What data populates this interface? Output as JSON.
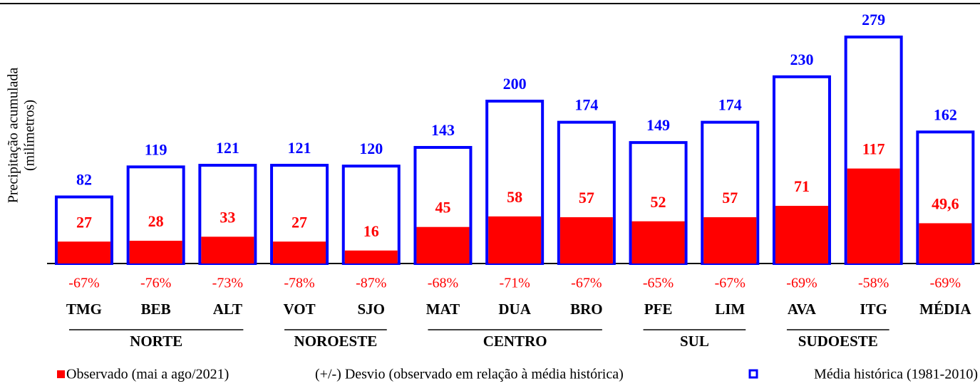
{
  "chart_data": {
    "type": "bar",
    "ylabel": [
      "Precipitação acumulada",
      "(milímetros)"
    ],
    "categories": [
      "TMG",
      "BEB",
      "ALT",
      "VOT",
      "SJO",
      "MAT",
      "DUA",
      "BRO",
      "PFE",
      "LIM",
      "AVA",
      "ITG",
      "MÉDIA"
    ],
    "series": [
      {
        "name": "Média histórica (1981-2010)",
        "color": "#0000ff",
        "style": "outline",
        "values": [
          82,
          119,
          121,
          121,
          120,
          143,
          200,
          174,
          149,
          174,
          230,
          279,
          162
        ]
      },
      {
        "name": "Observado (mai a ago/2021)",
        "color": "#ff0000",
        "style": "fill",
        "values": [
          27,
          28,
          33,
          27,
          16,
          45,
          58,
          57,
          52,
          57,
          71,
          117,
          49.6
        ],
        "value_labels": [
          "27",
          "28",
          "33",
          "27",
          "16",
          "45",
          "58",
          "57",
          "52",
          "57",
          "71",
          "117",
          "49,6"
        ]
      }
    ],
    "deviation_legend": "(+/-) Desvio (observado em relação à média histórica)",
    "deviation_labels": [
      "-67%",
      "-76%",
      "-73%",
      "-78%",
      "-87%",
      "-68%",
      "-71%",
      "-67%",
      "-65%",
      "-67%",
      "-69%",
      "-58%",
      "-69%"
    ],
    "groups": [
      {
        "name": "NORTE",
        "members": [
          0,
          1,
          2
        ]
      },
      {
        "name": "NOROESTE",
        "members": [
          3,
          4
        ]
      },
      {
        "name": "CENTRO",
        "members": [
          5,
          6,
          7
        ]
      },
      {
        "name": "SUL",
        "members": [
          8,
          9
        ]
      },
      {
        "name": "SUDOESTE",
        "members": [
          10,
          11
        ]
      }
    ],
    "ylim": [
      0,
      300
    ]
  }
}
